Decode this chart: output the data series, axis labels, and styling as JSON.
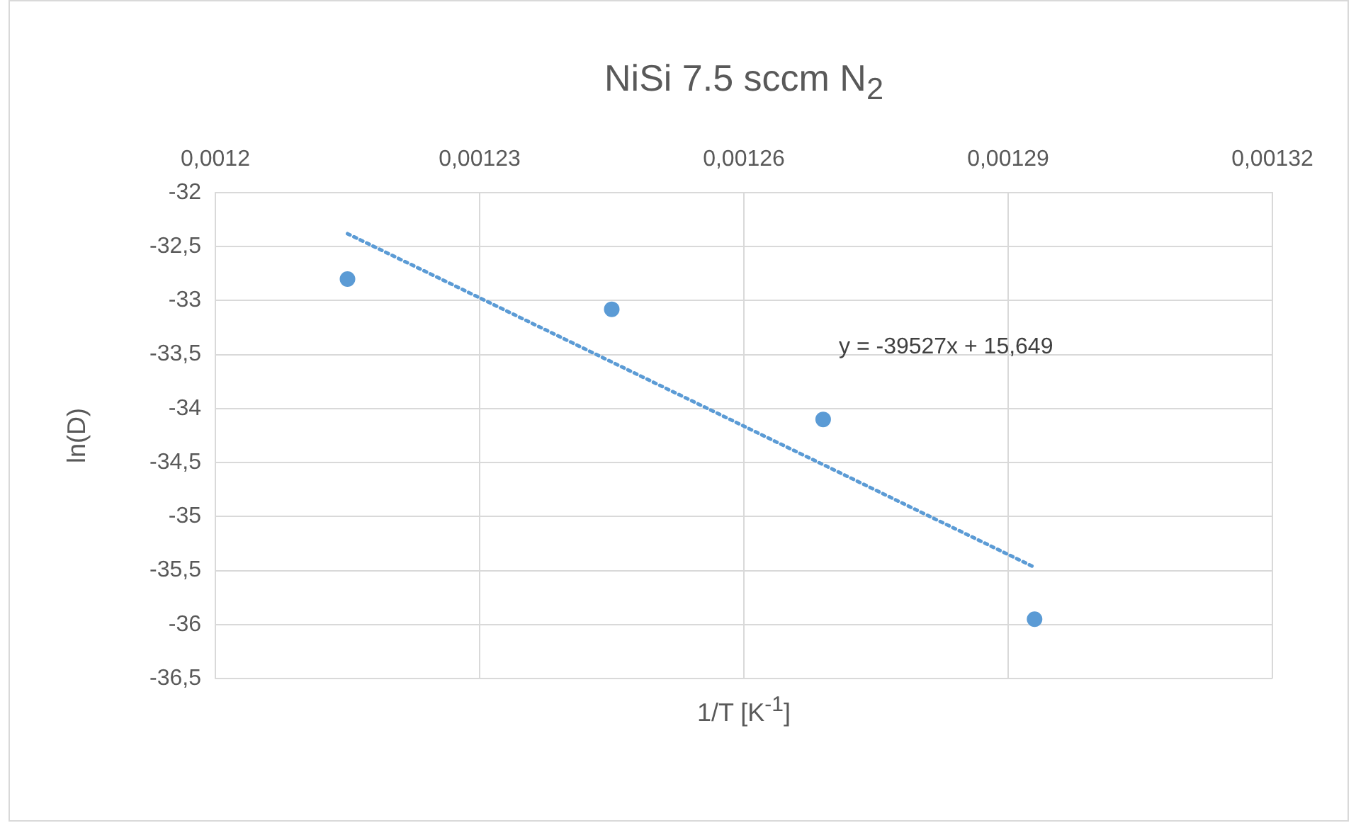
{
  "chart_data": {
    "type": "scatter",
    "title": "NiSi 7.5 sccm N$_{2}$",
    "xlabel": "1/T [K$^{-1}$]",
    "ylabel": "ln(D)",
    "x": [
      0.001215,
      0.001245,
      0.001269,
      0.001293
    ],
    "series": [
      {
        "type": "scatter",
        "color": "#5b9bd5",
        "values": [
          -32.8,
          -33.08,
          -34.1,
          -35.95
        ],
        "marker": "circle"
      },
      {
        "type": "line",
        "color": "#5b9bd5",
        "x": [
          0.001215,
          0.001293
        ],
        "values": [
          -32.38,
          -35.47
        ],
        "line_style": "dotted",
        "marker": "none"
      }
    ],
    "annotations": [
      "y = -39527x + 15,649"
    ],
    "xlim": [
      0.0012,
      0.00132
    ],
    "xticks": [
      {
        "value": 0.0012,
        "label": "0,0012"
      },
      {
        "value": 0.00123,
        "label": "0,00123"
      },
      {
        "value": 0.00126,
        "label": "0,00126"
      },
      {
        "value": 0.00129,
        "label": "0,00129"
      },
      {
        "value": 0.00132,
        "label": "0,00132"
      }
    ],
    "ylim": [
      -36.5,
      -32
    ],
    "yticks": [
      -32,
      {
        "value": -32.5,
        "label": "-32,5"
      },
      -33,
      {
        "value": -33.5,
        "label": "-33,5"
      },
      -34,
      {
        "value": -34.5,
        "label": "-34,5"
      },
      -35,
      {
        "value": -35.5,
        "label": "-35,5"
      },
      -36,
      {
        "value": -36.5,
        "label": "-36,5"
      }
    ],
    "grid": true,
    "legend": false
  }
}
